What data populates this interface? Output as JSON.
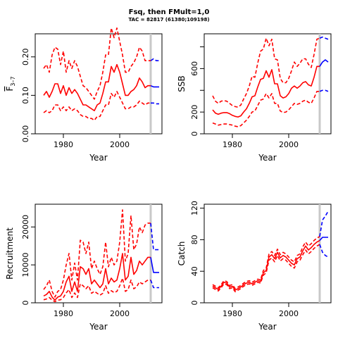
{
  "title": "Fsq, then FMult=1,0",
  "subtitle": "TAC = 82817 (61380;109198)",
  "colors": {
    "history": "#ff0000",
    "projection": "#0000ff",
    "reference_line": "#c8c8c8"
  },
  "chart_data": [
    {
      "type": "line",
      "panel": "top-left",
      "ylabel": "F3-7",
      "ylabel_main": "F",
      "ylabel_sub": "3–7",
      "xlabel": "Year",
      "xlim": [
        1970,
        2015
      ],
      "ylim": [
        0,
        0.26
      ],
      "xticks": [
        1980,
        2000
      ],
      "yticks": [
        0,
        0.1,
        0.2
      ],
      "ytick_labels": [
        "0.00",
        "0.10",
        "0.20"
      ],
      "reference_x": 2011,
      "x": [
        1973,
        1974,
        1975,
        1976,
        1977,
        1978,
        1979,
        1980,
        1981,
        1982,
        1983,
        1984,
        1985,
        1986,
        1987,
        1988,
        1989,
        1990,
        1991,
        1992,
        1993,
        1994,
        1995,
        1996,
        1997,
        1998,
        1999,
        2000,
        2001,
        2002,
        2003,
        2004,
        2005,
        2006,
        2007,
        2008,
        2009,
        2010,
        2011
      ],
      "series": [
        {
          "role": "estimate",
          "values": [
            0.1,
            0.11,
            0.095,
            0.11,
            0.13,
            0.13,
            0.105,
            0.125,
            0.1,
            0.12,
            0.105,
            0.115,
            0.105,
            0.09,
            0.075,
            0.075,
            0.07,
            0.065,
            0.06,
            0.075,
            0.08,
            0.105,
            0.135,
            0.135,
            0.175,
            0.16,
            0.18,
            0.16,
            0.13,
            0.1,
            0.1,
            0.11,
            0.115,
            0.125,
            0.145,
            0.135,
            0.12,
            0.125,
            0.125
          ]
        },
        {
          "role": "upper",
          "values": [
            0.17,
            0.18,
            0.16,
            0.205,
            0.225,
            0.22,
            0.18,
            0.215,
            0.16,
            0.19,
            0.17,
            0.19,
            0.175,
            0.15,
            0.125,
            0.12,
            0.11,
            0.1,
            0.09,
            0.11,
            0.125,
            0.16,
            0.205,
            0.205,
            0.275,
            0.25,
            0.275,
            0.24,
            0.205,
            0.16,
            0.16,
            0.175,
            0.185,
            0.2,
            0.225,
            0.215,
            0.19,
            0.19,
            0.19
          ]
        },
        {
          "role": "lower",
          "values": [
            0.055,
            0.06,
            0.055,
            0.06,
            0.075,
            0.075,
            0.06,
            0.07,
            0.06,
            0.07,
            0.06,
            0.065,
            0.06,
            0.05,
            0.045,
            0.045,
            0.04,
            0.04,
            0.035,
            0.045,
            0.045,
            0.06,
            0.075,
            0.075,
            0.105,
            0.095,
            0.11,
            0.095,
            0.08,
            0.065,
            0.065,
            0.07,
            0.07,
            0.075,
            0.085,
            0.08,
            0.075,
            0.08,
            0.08
          ]
        }
      ],
      "projection_x": [
        2011,
        2012,
        2013,
        2014
      ],
      "projection": [
        {
          "role": "estimate",
          "values": [
            0.125,
            0.122,
            0.122,
            0.122
          ]
        },
        {
          "role": "upper",
          "values": [
            0.19,
            0.195,
            0.19,
            0.19
          ]
        },
        {
          "role": "lower",
          "values": [
            0.08,
            0.08,
            0.078,
            0.078
          ]
        }
      ]
    },
    {
      "type": "line",
      "panel": "top-right",
      "ylabel": "SSB",
      "xlabel": "Year",
      "xlim": [
        1970,
        2015
      ],
      "ylim": [
        0,
        920
      ],
      "xticks": [
        1980,
        2000
      ],
      "yticks": [
        0,
        200,
        400,
        600,
        800
      ],
      "ytick_labels": [
        "0",
        "200",
        "",
        "600",
        ""
      ],
      "reference_x": 2011,
      "x": [
        1973,
        1974,
        1975,
        1976,
        1977,
        1978,
        1979,
        1980,
        1981,
        1982,
        1983,
        1984,
        1985,
        1986,
        1987,
        1988,
        1989,
        1990,
        1991,
        1992,
        1993,
        1994,
        1995,
        1996,
        1997,
        1998,
        1999,
        2000,
        2001,
        2002,
        2003,
        2004,
        2005,
        2006,
        2007,
        2008,
        2009,
        2010,
        2011
      ],
      "series": [
        {
          "role": "estimate",
          "values": [
            220,
            190,
            180,
            190,
            195,
            195,
            185,
            170,
            160,
            155,
            165,
            200,
            230,
            280,
            340,
            350,
            430,
            500,
            510,
            580,
            520,
            590,
            460,
            460,
            350,
            330,
            340,
            370,
            420,
            440,
            420,
            440,
            470,
            480,
            450,
            440,
            520,
            620,
            620
          ]
        },
        {
          "role": "upper",
          "values": [
            350,
            300,
            280,
            300,
            305,
            300,
            280,
            260,
            250,
            245,
            265,
            320,
            370,
            440,
            530,
            520,
            650,
            760,
            780,
            880,
            810,
            870,
            690,
            680,
            510,
            470,
            470,
            510,
            580,
            660,
            620,
            650,
            690,
            690,
            640,
            610,
            730,
            870,
            880
          ]
        },
        {
          "role": "lower",
          "values": [
            100,
            90,
            80,
            85,
            90,
            90,
            85,
            80,
            70,
            65,
            75,
            100,
            125,
            160,
            200,
            210,
            260,
            310,
            320,
            370,
            330,
            370,
            280,
            280,
            210,
            195,
            200,
            220,
            250,
            280,
            270,
            280,
            300,
            310,
            290,
            280,
            330,
            390,
            390
          ]
        }
      ],
      "projection_x": [
        2011,
        2012,
        2013,
        2014
      ],
      "projection": [
        {
          "role": "estimate",
          "values": [
            620,
            660,
            680,
            660
          ]
        },
        {
          "role": "upper",
          "values": [
            880,
            890,
            880,
            870
          ]
        },
        {
          "role": "lower",
          "values": [
            390,
            400,
            400,
            390
          ]
        }
      ]
    },
    {
      "type": "line",
      "panel": "bottom-left",
      "ylabel": "Recruitment",
      "xlabel": "Year",
      "xlim": [
        1970,
        2015
      ],
      "ylim": [
        0,
        26000
      ],
      "xticks": [
        1980,
        2000
      ],
      "yticks": [
        0,
        10000,
        20000
      ],
      "ytick_labels": [
        "0",
        "10000",
        "20000"
      ],
      "reference_x": 2011,
      "x": [
        1973,
        1974,
        1975,
        1976,
        1977,
        1978,
        1979,
        1980,
        1981,
        1982,
        1983,
        1984,
        1985,
        1986,
        1987,
        1988,
        1989,
        1990,
        1991,
        1992,
        1993,
        1994,
        1995,
        1996,
        1997,
        1998,
        1999,
        2000,
        2001,
        2002,
        2003,
        2004,
        2005,
        2006,
        2007,
        2008,
        2009,
        2010,
        2011
      ],
      "series": [
        {
          "role": "estimate",
          "values": [
            1800,
            2200,
            3000,
            1500,
            700,
            1500,
            1800,
            3000,
            5500,
            7000,
            3000,
            5500,
            3000,
            9500,
            9000,
            7500,
            9000,
            5000,
            6000,
            5000,
            4000,
            5000,
            9000,
            5000,
            6500,
            5500,
            6000,
            9000,
            13000,
            6000,
            7000,
            12000,
            7500,
            8500,
            11000,
            10000,
            11000,
            12000,
            12000
          ]
        },
        {
          "role": "upper",
          "values": [
            3500,
            4500,
            6000,
            3000,
            1500,
            3000,
            3500,
            6000,
            10000,
            13000,
            6000,
            10500,
            6000,
            16500,
            16000,
            13000,
            16000,
            9000,
            11000,
            9000,
            7500,
            9500,
            16000,
            9500,
            12000,
            10000,
            11000,
            16000,
            24500,
            11000,
            13000,
            23000,
            14000,
            15500,
            20000,
            18500,
            20500,
            21000,
            21000
          ]
        },
        {
          "role": "lower",
          "values": [
            800,
            1000,
            1400,
            700,
            300,
            700,
            800,
            1400,
            2600,
            3500,
            1400,
            2600,
            1400,
            5000,
            4500,
            3700,
            4500,
            2500,
            3000,
            2500,
            2000,
            2500,
            4500,
            2500,
            3200,
            2700,
            3000,
            4500,
            6500,
            3000,
            3500,
            6000,
            3700,
            4200,
            5500,
            5000,
            5500,
            6000,
            6000
          ]
        }
      ],
      "projection_x": [
        2011,
        2012,
        2013,
        2014
      ],
      "projection": [
        {
          "role": "estimate",
          "values": [
            12000,
            8000,
            8000,
            8000
          ]
        },
        {
          "role": "upper",
          "values": [
            21000,
            14000,
            14000,
            14000
          ]
        },
        {
          "role": "lower",
          "values": [
            6000,
            4000,
            4000,
            4000
          ]
        }
      ]
    },
    {
      "type": "line",
      "panel": "bottom-right",
      "ylabel": "Catch",
      "xlabel": "Year",
      "xlim": [
        1970,
        2015
      ],
      "ylim": [
        0,
        125
      ],
      "xticks": [
        1980,
        2000
      ],
      "yticks": [
        0,
        40,
        80,
        120
      ],
      "ytick_labels": [
        "0",
        "40",
        "80",
        "120"
      ],
      "reference_x": 2011,
      "x": [
        1973,
        1974,
        1975,
        1976,
        1977,
        1978,
        1979,
        1980,
        1981,
        1982,
        1983,
        1984,
        1985,
        1986,
        1987,
        1988,
        1989,
        1990,
        1991,
        1992,
        1993,
        1994,
        1995,
        1996,
        1997,
        1998,
        1999,
        2000,
        2001,
        2002,
        2003,
        2004,
        2005,
        2006,
        2007,
        2008,
        2009,
        2010,
        2011
      ],
      "series": [
        {
          "role": "estimate",
          "values": [
            21,
            19,
            17,
            21,
            26,
            25,
            20,
            21,
            16,
            18,
            20,
            23,
            25,
            26,
            24,
            26,
            28,
            27,
            38,
            41,
            58,
            61,
            56,
            64,
            57,
            60,
            58,
            54,
            50,
            48,
            56,
            58,
            66,
            72,
            67,
            70,
            74,
            77,
            79
          ]
        },
        {
          "role": "upper",
          "values": [
            23,
            21,
            19,
            23,
            28,
            27,
            22,
            23,
            18,
            20,
            22,
            25,
            27,
            28,
            26,
            28,
            30,
            29,
            41,
            44,
            62,
            65,
            60,
            68,
            61,
            64,
            62,
            58,
            54,
            52,
            60,
            62,
            71,
            77,
            72,
            75,
            79,
            82,
            84
          ]
        },
        {
          "role": "lower",
          "values": [
            19,
            17,
            15,
            19,
            24,
            23,
            18,
            19,
            14,
            16,
            18,
            21,
            23,
            24,
            22,
            24,
            26,
            25,
            35,
            38,
            54,
            57,
            52,
            60,
            53,
            56,
            54,
            50,
            46,
            44,
            52,
            54,
            61,
            67,
            62,
            65,
            69,
            72,
            74
          ]
        }
      ],
      "projection_x": [
        2011,
        2012,
        2013,
        2014
      ],
      "projection": [
        {
          "role": "estimate",
          "values": [
            79,
            83,
            83,
            83
          ]
        },
        {
          "role": "upper",
          "values": [
            84,
            105,
            110,
            116
          ]
        },
        {
          "role": "lower",
          "values": [
            74,
            64,
            60,
            58
          ]
        }
      ]
    }
  ]
}
